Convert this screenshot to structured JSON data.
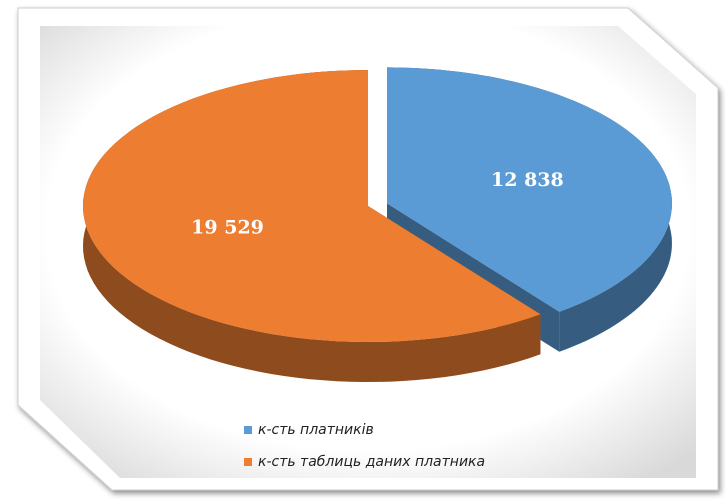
{
  "chart_data": {
    "type": "pie3d",
    "categories": [
      "к-сть платників",
      "к-сть таблиць даних платника"
    ],
    "values": [
      12838,
      19529
    ],
    "value_labels": [
      "12 838",
      "19 529"
    ],
    "colors": [
      "#5b9bd5",
      "#ed7d31"
    ],
    "legend": "bottom"
  }
}
